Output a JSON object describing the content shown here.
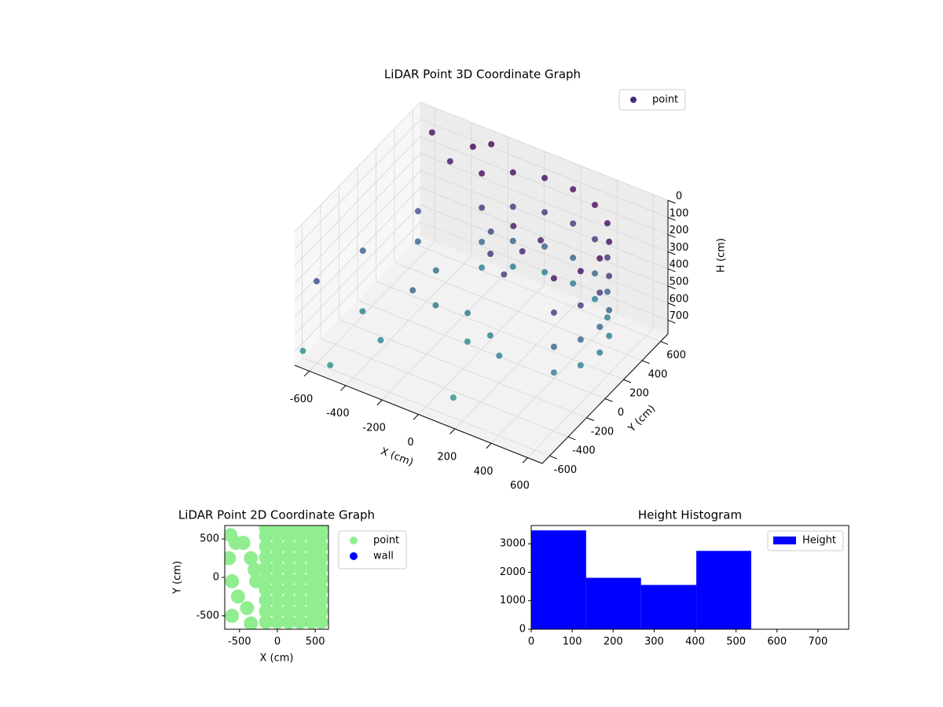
{
  "chart_data": [
    {
      "type": "scatter3d",
      "title": "LiDAR Point 3D Coordinate Graph",
      "xlabel": "X (cm)",
      "ylabel": "Y (cm)",
      "zlabel": "H (cm)",
      "xlim": [
        -680,
        680
      ],
      "ylim": [
        -680,
        680
      ],
      "zlim": [
        0,
        780
      ],
      "zinvert": true,
      "xticks": [
        -600,
        -400,
        -200,
        0,
        200,
        400,
        600
      ],
      "yticks": [
        -600,
        -400,
        -200,
        0,
        200,
        400,
        600
      ],
      "zticks": [
        0,
        100,
        200,
        300,
        400,
        500,
        600,
        700
      ],
      "grid": true,
      "legend": "upper right",
      "colormap": "viridis",
      "series": [
        {
          "name": "point",
          "color": "#472d7b",
          "x": [
            495,
            495,
            495,
            495,
            573,
            573,
            573,
            573,
            600,
            600,
            600,
            600,
            573,
            573,
            573,
            573,
            495,
            495,
            495,
            495,
            375,
            375,
            375,
            375,
            228,
            228,
            228,
            228,
            72,
            72,
            72,
            72,
            -75,
            -75,
            -75,
            -75,
            -195,
            -195,
            -195,
            -195,
            100,
            200,
            50,
            150,
            250,
            100,
            0,
            200,
            -50,
            -500,
            -450,
            -300,
            -200,
            -400,
            -550,
            -600,
            -500,
            -350,
            -250,
            -100,
            -650,
            -500,
            100,
            -600,
            -300,
            -250
          ],
          "y": [
            -189,
            -189,
            -189,
            -189,
            -54,
            -54,
            -54,
            -54,
            100,
            100,
            100,
            100,
            254,
            254,
            254,
            254,
            389,
            389,
            389,
            389,
            490,
            490,
            490,
            490,
            543,
            543,
            543,
            543,
            543,
            543,
            543,
            543,
            490,
            490,
            490,
            490,
            389,
            389,
            389,
            389,
            150,
            50,
            0,
            -50,
            150,
            -100,
            -150,
            -200,
            -50,
            300,
            200,
            100,
            -100,
            450,
            550,
            -100,
            -300,
            -400,
            -250,
            300,
            -650,
            -650,
            -500,
            -600,
            500,
            600
          ],
          "z": [
            50,
            250,
            450,
            600,
            50,
            250,
            450,
            600,
            50,
            250,
            450,
            600,
            50,
            250,
            450,
            600,
            50,
            250,
            450,
            600,
            50,
            250,
            450,
            600,
            50,
            250,
            450,
            600,
            50,
            250,
            450,
            600,
            50,
            250,
            450,
            600,
            50,
            250,
            450,
            600,
            100,
            150,
            200,
            250,
            120,
            600,
            650,
            620,
            560,
            350,
            450,
            500,
            550,
            100,
            50,
            400,
            600,
            650,
            400,
            300,
            700,
            720,
            740,
            300,
            0,
            20
          ]
        }
      ]
    },
    {
      "type": "scatter",
      "title": "LiDAR Point 2D Coordinate Graph",
      "xlabel": "X (cm)",
      "ylabel": "Y (cm)",
      "xlim": [
        -695,
        675
      ],
      "ylim": [
        -675,
        675
      ],
      "xticks": [
        -500,
        0,
        500
      ],
      "yticks": [
        -500,
        0,
        500
      ],
      "legend": "outside right",
      "series": [
        {
          "name": "point",
          "color": "#90ee90",
          "x": [
            -150,
            -150,
            -150,
            -150,
            -150,
            -150,
            -150,
            -150,
            -150,
            -150,
            0,
            0,
            0,
            0,
            0,
            0,
            0,
            0,
            0,
            0,
            150,
            150,
            150,
            150,
            150,
            150,
            150,
            150,
            150,
            150,
            300,
            300,
            300,
            300,
            300,
            300,
            300,
            300,
            300,
            300,
            450,
            450,
            450,
            450,
            450,
            450,
            450,
            450,
            450,
            450,
            580,
            580,
            580,
            580,
            580,
            580,
            580,
            580,
            580,
            580,
            -620,
            -550,
            -640,
            -600,
            -520,
            -600,
            -400,
            -350,
            -450,
            -350,
            -280,
            -300
          ],
          "y": [
            -580,
            -440,
            -300,
            -160,
            -20,
            120,
            260,
            400,
            540,
            640,
            -580,
            -440,
            -300,
            -160,
            -20,
            120,
            260,
            400,
            540,
            640,
            -580,
            -440,
            -300,
            -160,
            -20,
            120,
            260,
            400,
            540,
            640,
            -580,
            -440,
            -300,
            -160,
            -20,
            120,
            260,
            400,
            540,
            640,
            -580,
            -440,
            -300,
            -160,
            -20,
            120,
            260,
            400,
            540,
            640,
            -580,
            -440,
            -300,
            -160,
            -20,
            120,
            260,
            400,
            540,
            640,
            550,
            450,
            250,
            -50,
            -250,
            -500,
            -400,
            -600,
            450,
            250,
            -50,
            100
          ]
        },
        {
          "name": "wall",
          "color": "#0000ff",
          "x": [],
          "y": []
        }
      ]
    },
    {
      "type": "histogram",
      "title": "Height Histogram",
      "name": "Height",
      "color": "#0000ff",
      "bins": [
        0,
        134,
        268,
        403,
        537
      ],
      "values": [
        3470,
        1805,
        1555,
        2750
      ],
      "xlim": [
        0,
        775
      ],
      "ylim": [
        0,
        3640
      ],
      "xticks": [
        0,
        100,
        200,
        300,
        400,
        500,
        600,
        700
      ],
      "yticks": [
        0,
        1000,
        2000,
        3000
      ],
      "legend": "upper right"
    }
  ]
}
